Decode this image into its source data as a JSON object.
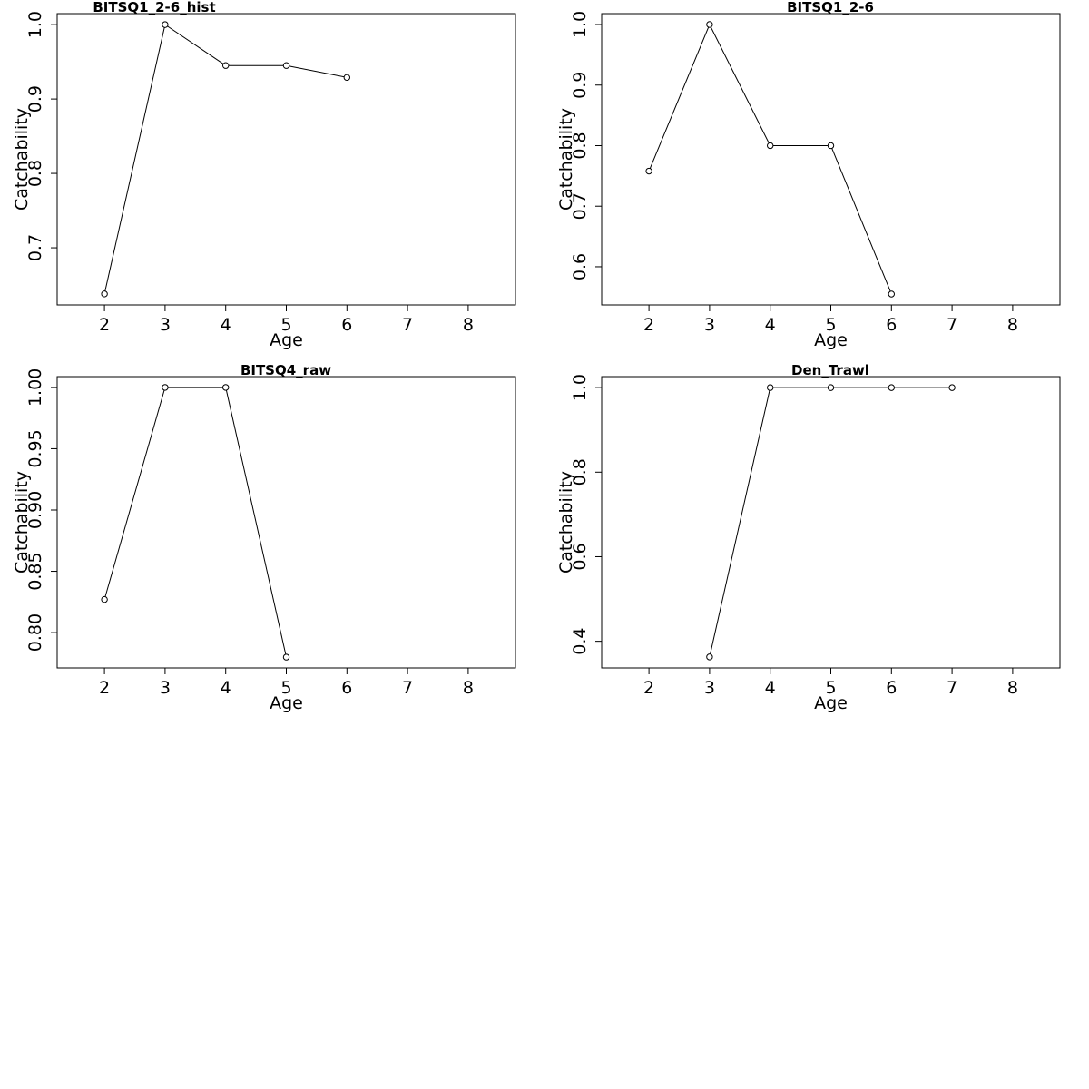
{
  "chart_data": [
    {
      "type": "line",
      "title": "BITSQ1_2-6_hist",
      "xlabel": "Age",
      "ylabel": "Catchability",
      "xlim": [
        1.22,
        8.78
      ],
      "ylim": [
        0.6232,
        1.0148
      ],
      "xticks": [
        "2",
        "3",
        "4",
        "5",
        "6",
        "7",
        "8"
      ],
      "yticks": [
        "0.7",
        "0.8",
        "0.9",
        "1.0"
      ],
      "x": [
        2,
        3,
        4,
        5,
        6
      ],
      "y": [
        0.638,
        1.0,
        0.945,
        0.945,
        0.929
      ]
    },
    {
      "type": "line",
      "title": "BITSQ1_2-6",
      "xlabel": "Age",
      "ylabel": "Catchability",
      "xlim": [
        1.22,
        8.78
      ],
      "ylim": [
        0.537,
        1.018
      ],
      "xticks": [
        "2",
        "3",
        "4",
        "5",
        "6",
        "7",
        "8"
      ],
      "yticks": [
        "0.6",
        "0.7",
        "0.8",
        "0.9",
        "1.0"
      ],
      "x": [
        2,
        3,
        4,
        5,
        6
      ],
      "y": [
        0.758,
        1.0,
        0.8,
        0.8,
        0.555
      ]
    },
    {
      "type": "line",
      "title": "BITSQ4_raw",
      "xlabel": "Age",
      "ylabel": "Catchability",
      "xlim": [
        1.22,
        8.78
      ],
      "ylim": [
        0.7712,
        1.0088
      ],
      "xticks": [
        "2",
        "3",
        "4",
        "5",
        "6",
        "7",
        "8"
      ],
      "yticks": [
        "0.80",
        "0.85",
        "0.90",
        "0.95",
        "1.00"
      ],
      "x": [
        2,
        3,
        4,
        5
      ],
      "y": [
        0.827,
        1.0,
        1.0,
        0.78
      ]
    },
    {
      "type": "line",
      "title": "Den_Trawl",
      "xlabel": "Age",
      "ylabel": "Catchability",
      "xlim": [
        1.22,
        8.78
      ],
      "ylim": [
        0.337,
        1.026
      ],
      "xticks": [
        "2",
        "3",
        "4",
        "5",
        "6",
        "7",
        "8"
      ],
      "yticks": [
        "0.4",
        "0.6",
        "0.8",
        "1.0"
      ],
      "x": [
        3,
        4,
        5,
        6,
        7
      ],
      "y": [
        0.363,
        1.0,
        1.0,
        1.0,
        1.0
      ]
    }
  ]
}
